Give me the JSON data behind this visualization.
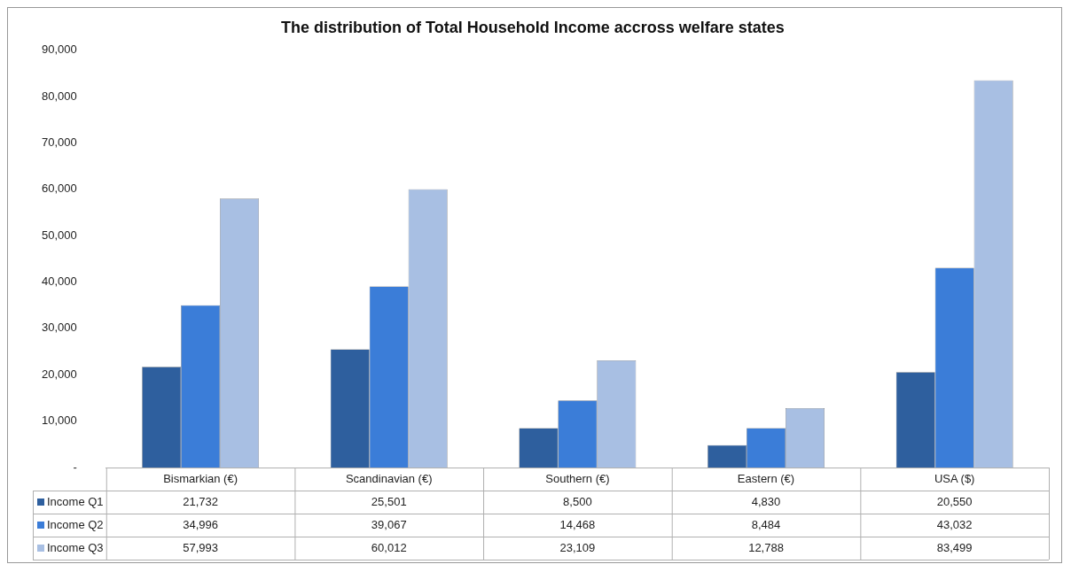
{
  "chart_data": {
    "type": "bar",
    "title": "The distribution of Total Household Income accross welfare states",
    "categories": [
      "Bismarkian (€)",
      "Scandinavian (€)",
      "Southern (€)",
      "Eastern (€)",
      "USA ($)"
    ],
    "series": [
      {
        "name": "Income Q1",
        "color": "#2e5f9e",
        "values": [
          21732,
          25501,
          8500,
          4830,
          20550
        ],
        "value_labels": [
          "21,732",
          "25,501",
          "8,500",
          "4,830",
          "20,550"
        ]
      },
      {
        "name": "Income Q2",
        "color": "#3b7dd8",
        "values": [
          34996,
          39067,
          14468,
          8484,
          43032
        ],
        "value_labels": [
          "34,996",
          "39,067",
          "14,468",
          "8,484",
          "43,032"
        ]
      },
      {
        "name": "Income Q3",
        "color": "#a8bfe3",
        "values": [
          57993,
          60012,
          23109,
          12788,
          83499
        ],
        "value_labels": [
          "57,993",
          "60,012",
          "23,109",
          "12,788",
          "83,499"
        ]
      }
    ],
    "ylim": [
      0,
      90000
    ],
    "yticks": [
      {
        "value": 0,
        "label": "-"
      },
      {
        "value": 10000,
        "label": "10,000"
      },
      {
        "value": 20000,
        "label": "20,000"
      },
      {
        "value": 30000,
        "label": "30,000"
      },
      {
        "value": 40000,
        "label": "40,000"
      },
      {
        "value": 50000,
        "label": "50,000"
      },
      {
        "value": 60000,
        "label": "60,000"
      },
      {
        "value": 70000,
        "label": "70,000"
      },
      {
        "value": 80000,
        "label": "80,000"
      },
      {
        "value": 90000,
        "label": "90,000"
      }
    ],
    "grid": false,
    "legend": "bottom"
  }
}
